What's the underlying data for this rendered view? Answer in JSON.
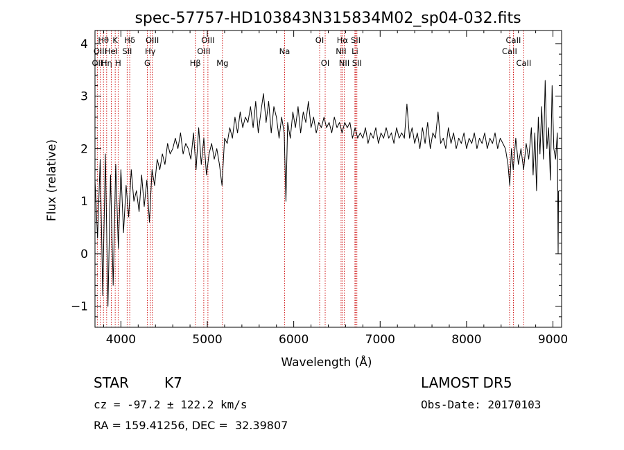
{
  "chart_data": {
    "type": "line",
    "title": "spec-57757-HD103843N315834M02_sp04-032.fits",
    "xlabel": "Wavelength (Å)",
    "ylabel": "Flux (relative)",
    "xlim": [
      3700,
      9100
    ],
    "ylim": [
      -1.4,
      4.25
    ],
    "xticks": [
      4000,
      5000,
      6000,
      7000,
      8000,
      9000
    ],
    "yticks": [
      -1,
      0,
      1,
      2,
      3,
      4
    ],
    "line_color": "#000000",
    "marker_color": "#cc0000",
    "series": [
      {
        "values": [
          [
            3700,
            1.4
          ],
          [
            3730,
            0.3
          ],
          [
            3760,
            1.8
          ],
          [
            3790,
            -0.8
          ],
          [
            3820,
            1.9
          ],
          [
            3850,
            -1.0
          ],
          [
            3880,
            1.5
          ],
          [
            3910,
            -0.6
          ],
          [
            3940,
            1.7
          ],
          [
            3970,
            0.1
          ],
          [
            4000,
            1.6
          ],
          [
            4030,
            0.4
          ],
          [
            4060,
            1.3
          ],
          [
            4090,
            0.7
          ],
          [
            4120,
            1.6
          ],
          [
            4150,
            1.0
          ],
          [
            4180,
            1.2
          ],
          [
            4210,
            0.8
          ],
          [
            4240,
            1.5
          ],
          [
            4270,
            0.9
          ],
          [
            4300,
            1.4
          ],
          [
            4330,
            0.6
          ],
          [
            4360,
            1.6
          ],
          [
            4390,
            1.3
          ],
          [
            4420,
            1.8
          ],
          [
            4450,
            1.6
          ],
          [
            4480,
            1.9
          ],
          [
            4510,
            1.7
          ],
          [
            4540,
            2.1
          ],
          [
            4570,
            1.9
          ],
          [
            4600,
            2.0
          ],
          [
            4630,
            2.2
          ],
          [
            4660,
            2.0
          ],
          [
            4690,
            2.3
          ],
          [
            4720,
            1.9
          ],
          [
            4750,
            2.1
          ],
          [
            4780,
            2.0
          ],
          [
            4810,
            1.8
          ],
          [
            4840,
            2.3
          ],
          [
            4870,
            1.6
          ],
          [
            4900,
            2.4
          ],
          [
            4930,
            1.7
          ],
          [
            4960,
            2.2
          ],
          [
            4990,
            1.5
          ],
          [
            5020,
            1.9
          ],
          [
            5050,
            2.1
          ],
          [
            5080,
            1.8
          ],
          [
            5110,
            2.0
          ],
          [
            5140,
            1.7
          ],
          [
            5170,
            1.3
          ],
          [
            5200,
            2.2
          ],
          [
            5230,
            2.1
          ],
          [
            5260,
            2.4
          ],
          [
            5290,
            2.2
          ],
          [
            5320,
            2.6
          ],
          [
            5350,
            2.3
          ],
          [
            5380,
            2.7
          ],
          [
            5410,
            2.4
          ],
          [
            5440,
            2.6
          ],
          [
            5470,
            2.5
          ],
          [
            5500,
            2.8
          ],
          [
            5530,
            2.4
          ],
          [
            5560,
            2.9
          ],
          [
            5590,
            2.3
          ],
          [
            5620,
            2.7
          ],
          [
            5650,
            3.05
          ],
          [
            5680,
            2.5
          ],
          [
            5710,
            2.9
          ],
          [
            5740,
            2.3
          ],
          [
            5770,
            2.8
          ],
          [
            5800,
            2.6
          ],
          [
            5830,
            2.2
          ],
          [
            5860,
            2.6
          ],
          [
            5890,
            2.3
          ],
          [
            5910,
            1.0
          ],
          [
            5930,
            2.5
          ],
          [
            5960,
            2.2
          ],
          [
            5990,
            2.7
          ],
          [
            6020,
            2.4
          ],
          [
            6050,
            2.8
          ],
          [
            6080,
            2.3
          ],
          [
            6110,
            2.7
          ],
          [
            6140,
            2.5
          ],
          [
            6170,
            2.9
          ],
          [
            6200,
            2.4
          ],
          [
            6230,
            2.6
          ],
          [
            6260,
            2.3
          ],
          [
            6290,
            2.5
          ],
          [
            6320,
            2.4
          ],
          [
            6350,
            2.6
          ],
          [
            6380,
            2.4
          ],
          [
            6410,
            2.5
          ],
          [
            6440,
            2.3
          ],
          [
            6470,
            2.6
          ],
          [
            6500,
            2.4
          ],
          [
            6530,
            2.5
          ],
          [
            6560,
            2.3
          ],
          [
            6590,
            2.5
          ],
          [
            6620,
            2.4
          ],
          [
            6650,
            2.5
          ],
          [
            6680,
            2.2
          ],
          [
            6710,
            2.4
          ],
          [
            6740,
            2.2
          ],
          [
            6770,
            2.3
          ],
          [
            6800,
            2.2
          ],
          [
            6830,
            2.4
          ],
          [
            6860,
            2.1
          ],
          [
            6890,
            2.3
          ],
          [
            6920,
            2.2
          ],
          [
            6950,
            2.4
          ],
          [
            6980,
            2.1
          ],
          [
            7010,
            2.3
          ],
          [
            7040,
            2.2
          ],
          [
            7070,
            2.4
          ],
          [
            7100,
            2.2
          ],
          [
            7130,
            2.3
          ],
          [
            7160,
            2.1
          ],
          [
            7190,
            2.4
          ],
          [
            7220,
            2.2
          ],
          [
            7250,
            2.3
          ],
          [
            7280,
            2.2
          ],
          [
            7310,
            2.85
          ],
          [
            7340,
            2.2
          ],
          [
            7370,
            2.4
          ],
          [
            7400,
            2.1
          ],
          [
            7430,
            2.3
          ],
          [
            7460,
            2.0
          ],
          [
            7490,
            2.4
          ],
          [
            7520,
            2.1
          ],
          [
            7550,
            2.5
          ],
          [
            7580,
            2.0
          ],
          [
            7610,
            2.3
          ],
          [
            7640,
            2.2
          ],
          [
            7670,
            2.7
          ],
          [
            7700,
            2.1
          ],
          [
            7730,
            2.2
          ],
          [
            7760,
            2.0
          ],
          [
            7790,
            2.4
          ],
          [
            7820,
            2.1
          ],
          [
            7850,
            2.3
          ],
          [
            7880,
            2.0
          ],
          [
            7910,
            2.2
          ],
          [
            7940,
            2.1
          ],
          [
            7970,
            2.3
          ],
          [
            8000,
            2.0
          ],
          [
            8030,
            2.2
          ],
          [
            8060,
            2.1
          ],
          [
            8090,
            2.3
          ],
          [
            8120,
            2.0
          ],
          [
            8150,
            2.2
          ],
          [
            8180,
            2.1
          ],
          [
            8210,
            2.3
          ],
          [
            8240,
            2.0
          ],
          [
            8270,
            2.2
          ],
          [
            8300,
            2.1
          ],
          [
            8330,
            2.3
          ],
          [
            8360,
            2.0
          ],
          [
            8390,
            2.2
          ],
          [
            8420,
            2.1
          ],
          [
            8450,
            2.0
          ],
          [
            8480,
            1.7
          ],
          [
            8500,
            1.3
          ],
          [
            8520,
            2.0
          ],
          [
            8540,
            1.6
          ],
          [
            8570,
            2.2
          ],
          [
            8600,
            1.7
          ],
          [
            8630,
            2.0
          ],
          [
            8660,
            1.6
          ],
          [
            8690,
            2.1
          ],
          [
            8720,
            1.8
          ],
          [
            8750,
            2.4
          ],
          [
            8770,
            1.5
          ],
          [
            8790,
            2.3
          ],
          [
            8810,
            1.2
          ],
          [
            8830,
            2.6
          ],
          [
            8850,
            1.9
          ],
          [
            8870,
            2.8
          ],
          [
            8890,
            1.8
          ],
          [
            8910,
            3.3
          ],
          [
            8930,
            2.0
          ],
          [
            8950,
            2.4
          ],
          [
            8970,
            1.4
          ],
          [
            8990,
            3.2
          ],
          [
            9010,
            2.0
          ],
          [
            9030,
            1.8
          ],
          [
            9050,
            2.3
          ],
          [
            9060,
            0.0
          ],
          [
            9065,
            1.2
          ]
        ]
      }
    ],
    "lines": [
      {
        "label": "OII",
        "wavelength": 3727,
        "row": 3
      },
      {
        "label": "Hθ",
        "wavelength": 3798,
        "row": 1
      },
      {
        "label": "OIII",
        "wavelength": 3760,
        "row": 2
      },
      {
        "label": "Hη",
        "wavelength": 3835,
        "row": 3
      },
      {
        "label": "HeI",
        "wavelength": 3889,
        "row": 2
      },
      {
        "label": "K",
        "wavelength": 3934,
        "row": 1
      },
      {
        "label": "H",
        "wavelength": 3968,
        "row": 3
      },
      {
        "label": "SII",
        "wavelength": 4072,
        "row": 2
      },
      {
        "label": "Hδ",
        "wavelength": 4102,
        "row": 1
      },
      {
        "label": "G",
        "wavelength": 4305,
        "row": 3
      },
      {
        "label": "Hγ",
        "wavelength": 4340,
        "row": 2
      },
      {
        "label": "OIII",
        "wavelength": 4363,
        "row": 1
      },
      {
        "label": "Hβ",
        "wavelength": 4861,
        "row": 3
      },
      {
        "label": "OIII",
        "wavelength": 4959,
        "row": 2
      },
      {
        "label": "OIII",
        "wavelength": 5007,
        "row": 1
      },
      {
        "label": "Mg",
        "wavelength": 5175,
        "row": 3
      },
      {
        "label": "Na",
        "wavelength": 5894,
        "row": 2
      },
      {
        "label": "OI",
        "wavelength": 6300,
        "row": 1
      },
      {
        "label": "OI",
        "wavelength": 6364,
        "row": 3
      },
      {
        "label": "NII",
        "wavelength": 6548,
        "row": 2
      },
      {
        "label": "Hα",
        "wavelength": 6563,
        "row": 1
      },
      {
        "label": "NII",
        "wavelength": 6584,
        "row": 3
      },
      {
        "label": "Li",
        "wavelength": 6708,
        "row": 2
      },
      {
        "label": "SII",
        "wavelength": 6717,
        "row": 1
      },
      {
        "label": "SII",
        "wavelength": 6731,
        "row": 3
      },
      {
        "label": "CaII",
        "wavelength": 8498,
        "row": 2
      },
      {
        "label": "CaII",
        "wavelength": 8542,
        "row": 1
      },
      {
        "label": "CaII",
        "wavelength": 8662,
        "row": 3
      }
    ]
  },
  "info": {
    "object_class": "STAR",
    "subclass": "K7",
    "survey": "LAMOST DR5",
    "cz": "cz = -97.2 ± 122.2 km/s",
    "obs_date": "Obs-Date: 20170103",
    "coords": "RA = 159.41256, DEC =  32.39807"
  }
}
